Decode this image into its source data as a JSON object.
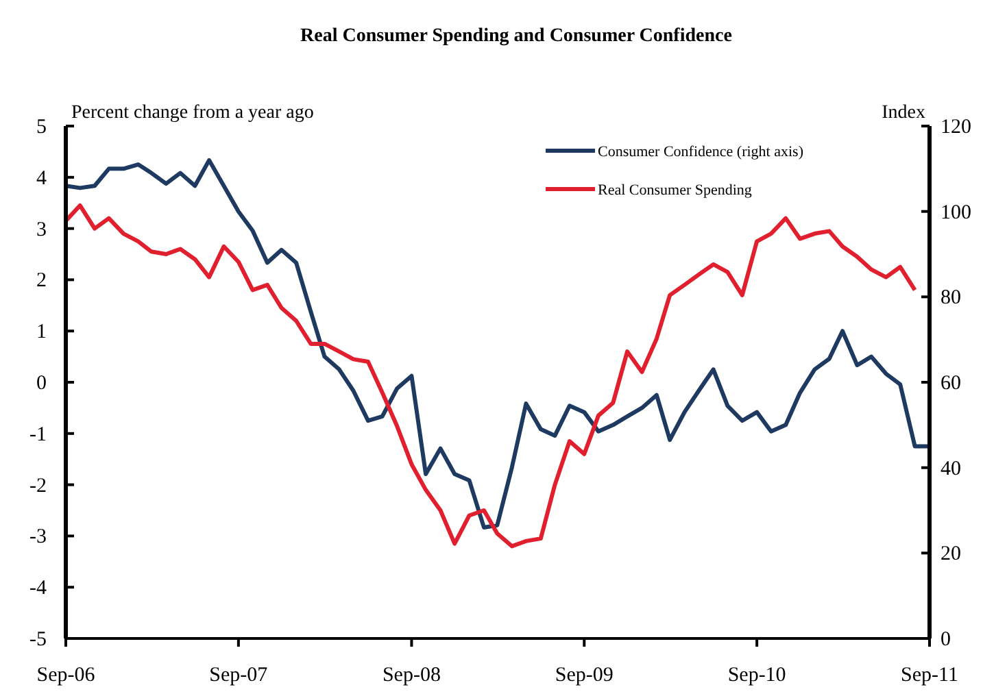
{
  "chart_data": {
    "type": "line",
    "title": "Real Consumer Spending and Consumer Confidence",
    "ylabel": "Percent change from a year ago",
    "y2label": "Index",
    "x": [
      "2006-09",
      "2006-10",
      "2006-11",
      "2006-12",
      "2007-01",
      "2007-02",
      "2007-03",
      "2007-04",
      "2007-05",
      "2007-06",
      "2007-07",
      "2007-08",
      "2007-09",
      "2007-10",
      "2007-11",
      "2007-12",
      "2008-01",
      "2008-02",
      "2008-03",
      "2008-04",
      "2008-05",
      "2008-06",
      "2008-07",
      "2008-08",
      "2008-09",
      "2008-10",
      "2008-11",
      "2008-12",
      "2009-01",
      "2009-02",
      "2009-03",
      "2009-04",
      "2009-05",
      "2009-06",
      "2009-07",
      "2009-08",
      "2009-09",
      "2009-10",
      "2009-11",
      "2009-12",
      "2010-01",
      "2010-02",
      "2010-03",
      "2010-04",
      "2010-05",
      "2010-06",
      "2010-07",
      "2010-08",
      "2010-09",
      "2010-10",
      "2010-11",
      "2010-12",
      "2011-01",
      "2011-02",
      "2011-03",
      "2011-04",
      "2011-05",
      "2011-06",
      "2011-07",
      "2011-08",
      "2011-09"
    ],
    "series": [
      {
        "name": "Consumer Confidence (right axis)",
        "color": "#1f3a60",
        "axis": "y2",
        "values": [
          106,
          105.5,
          106,
          110,
          110,
          111,
          109,
          106.5,
          109,
          106,
          112,
          106,
          100,
          95.5,
          88,
          91,
          88,
          76.5,
          66,
          63,
          58,
          51,
          52,
          58.5,
          61.5,
          38.5,
          44.5,
          38.5,
          37,
          26,
          26.5,
          40,
          55,
          49,
          47.5,
          54.5,
          53,
          48.5,
          50,
          52,
          54,
          57,
          46.5,
          53,
          58,
          63,
          54.5,
          51,
          53,
          48.5,
          50,
          57.5,
          63,
          65.5,
          72,
          64,
          66,
          62,
          59.5,
          45,
          45
        ]
      },
      {
        "name": "Real Consumer Spending",
        "color": "#e0202e",
        "values": [
          3.15,
          3.45,
          3.0,
          3.2,
          2.9,
          2.75,
          2.55,
          2.5,
          2.6,
          2.4,
          2.05,
          2.65,
          2.35,
          1.8,
          1.9,
          1.45,
          1.2,
          0.75,
          0.75,
          0.6,
          0.45,
          0.4,
          -0.2,
          -0.85,
          -1.6,
          -2.1,
          -2.5,
          -3.15,
          -2.6,
          -2.5,
          -2.95,
          -3.2,
          -3.1,
          -3.05,
          -2.0,
          -1.15,
          -1.4,
          -0.65,
          -0.4,
          0.6,
          0.2,
          0.85,
          1.7,
          1.9,
          2.1,
          2.3,
          2.15,
          1.7,
          2.75,
          2.9,
          3.2,
          2.8,
          2.9,
          2.95,
          2.65,
          2.45,
          2.2,
          2.05,
          2.25,
          1.8,
          null
        ]
      }
    ],
    "xlim": [
      "2006-09",
      "2011-09"
    ],
    "xticks": [
      {
        "value": "2006-09",
        "label": "Sep-06"
      },
      {
        "value": "2007-09",
        "label": "Sep-07"
      },
      {
        "value": "2008-09",
        "label": "Sep-08"
      },
      {
        "value": "2009-09",
        "label": "Sep-09"
      },
      {
        "value": "2010-09",
        "label": "Sep-10"
      },
      {
        "value": "2011-09",
        "label": "Sep-11"
      }
    ],
    "ylim": [
      -5,
      5
    ],
    "yticks": [
      -5,
      -4,
      -3,
      -2,
      -1,
      0,
      1,
      2,
      3,
      4,
      5
    ],
    "y2lim": [
      0,
      120
    ],
    "y2ticks": [
      0,
      20,
      40,
      60,
      80,
      100,
      120
    ],
    "grid": false,
    "legend": "top right",
    "marker": "none",
    "line_style": "solid"
  }
}
